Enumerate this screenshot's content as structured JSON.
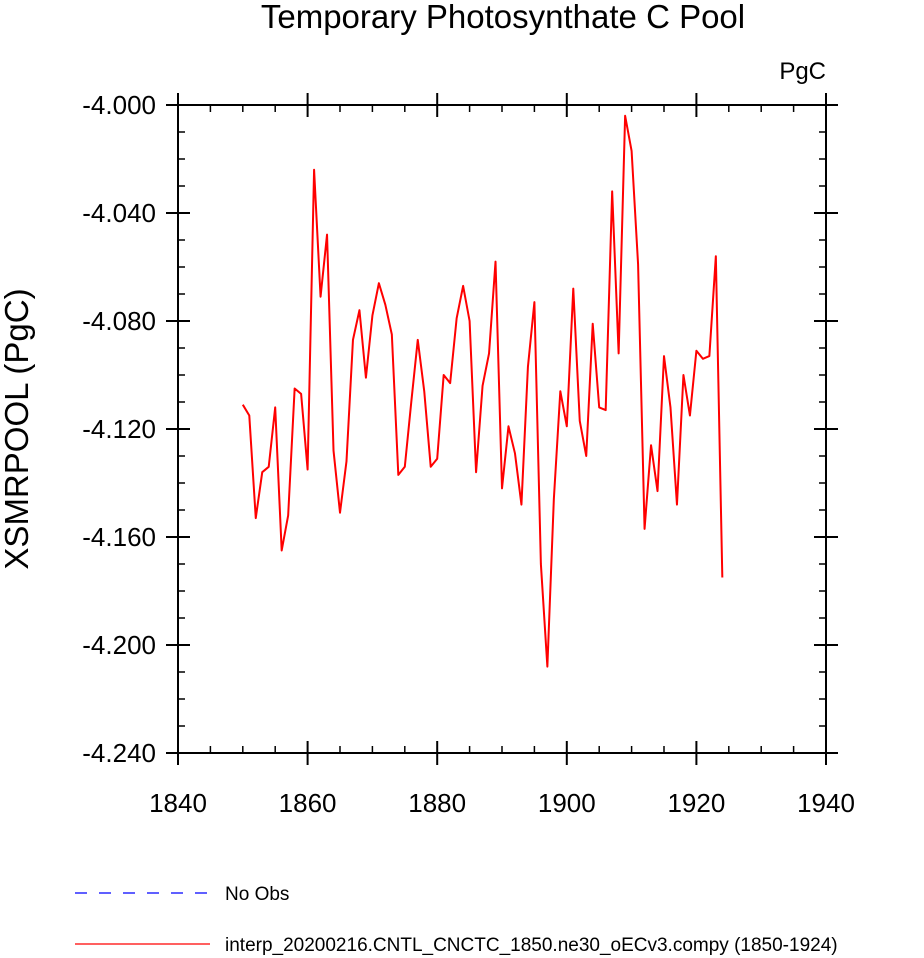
{
  "chart_data": {
    "type": "line",
    "title": "Temporary Photosynthate C Pool",
    "units": "PgC",
    "xlabel": "",
    "ylabel": "XSMRPOOL  (PgC)",
    "xlim": [
      1840,
      1940
    ],
    "ylim": [
      -4.24,
      -4.0
    ],
    "xticks": [
      "1840",
      "1860",
      "1880",
      "1900",
      "1920",
      "1940"
    ],
    "yticks": [
      "-4.000",
      "-4.040",
      "-4.080",
      "-4.120",
      "-4.160",
      "-4.200",
      "-4.240"
    ],
    "grid": false,
    "legend_position": "bottom-left",
    "series": [
      {
        "name": "No Obs",
        "color": "#0000ff",
        "dash": "dashed",
        "x": [],
        "y": []
      },
      {
        "name": "interp_20200216.CNTL_CNCTC_1850.ne30_oECv3.compy (1850-1924)",
        "color": "#ff0000",
        "dash": "solid",
        "x": [
          1850,
          1851,
          1852,
          1853,
          1854,
          1855,
          1856,
          1857,
          1858,
          1859,
          1860,
          1861,
          1862,
          1863,
          1864,
          1865,
          1866,
          1867,
          1868,
          1869,
          1870,
          1871,
          1872,
          1873,
          1874,
          1875,
          1876,
          1877,
          1878,
          1879,
          1880,
          1881,
          1882,
          1883,
          1884,
          1885,
          1886,
          1887,
          1888,
          1889,
          1890,
          1891,
          1892,
          1893,
          1894,
          1895,
          1896,
          1897,
          1898,
          1899,
          1900,
          1901,
          1902,
          1903,
          1904,
          1905,
          1906,
          1907,
          1908,
          1909,
          1910,
          1911,
          1912,
          1913,
          1914,
          1915,
          1916,
          1917,
          1918,
          1919,
          1920,
          1921,
          1922,
          1923,
          1924
        ],
        "y": [
          -4.111,
          -4.115,
          -4.153,
          -4.136,
          -4.134,
          -4.112,
          -4.165,
          -4.152,
          -4.105,
          -4.107,
          -4.135,
          -4.024,
          -4.071,
          -4.048,
          -4.128,
          -4.151,
          -4.132,
          -4.087,
          -4.076,
          -4.101,
          -4.078,
          -4.066,
          -4.074,
          -4.085,
          -4.137,
          -4.134,
          -4.11,
          -4.087,
          -4.106,
          -4.134,
          -4.131,
          -4.1,
          -4.103,
          -4.079,
          -4.067,
          -4.08,
          -4.136,
          -4.104,
          -4.092,
          -4.058,
          -4.142,
          -4.119,
          -4.129,
          -4.148,
          -4.097,
          -4.073,
          -4.17,
          -4.208,
          -4.146,
          -4.106,
          -4.119,
          -4.068,
          -4.117,
          -4.13,
          -4.081,
          -4.112,
          -4.113,
          -4.032,
          -4.092,
          -4.004,
          -4.017,
          -4.059,
          -4.157,
          -4.126,
          -4.143,
          -4.093,
          -4.112,
          -4.148,
          -4.1,
          -4.115,
          -4.091,
          -4.094,
          -4.093,
          -4.056,
          -4.175
        ]
      }
    ]
  }
}
